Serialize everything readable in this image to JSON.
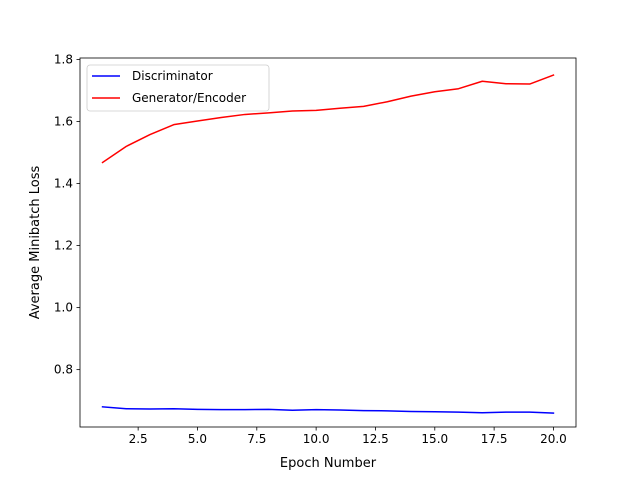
{
  "chart_data": {
    "type": "line",
    "title": "",
    "xlabel": "Epoch Number",
    "ylabel": "Average Minibatch Loss",
    "xlim": [
      0.05,
      20.95
    ],
    "ylim": [
      0.615,
      1.805
    ],
    "xticks": [
      2.5,
      5.0,
      7.5,
      10.0,
      12.5,
      15.0,
      17.5,
      20.0
    ],
    "xtick_labels": [
      "2.5",
      "5.0",
      "7.5",
      "10.0",
      "12.5",
      "15.0",
      "17.5",
      "20.0"
    ],
    "yticks": [
      0.8,
      1.0,
      1.2,
      1.4,
      1.6,
      1.8
    ],
    "ytick_labels": [
      "0.8",
      "1.0",
      "1.2",
      "1.4",
      "1.6",
      "1.8"
    ],
    "grid": false,
    "legend_position": "upper-left",
    "x": [
      1,
      2,
      3,
      4,
      5,
      6,
      7,
      8,
      9,
      10,
      11,
      12,
      13,
      14,
      15,
      16,
      17,
      18,
      19,
      20
    ],
    "series": [
      {
        "name": "Discriminator",
        "color": "#0000ff",
        "values": [
          0.68,
          0.674,
          0.673,
          0.674,
          0.672,
          0.671,
          0.671,
          0.672,
          0.669,
          0.671,
          0.67,
          0.668,
          0.667,
          0.665,
          0.664,
          0.663,
          0.661,
          0.663,
          0.663,
          0.66
        ]
      },
      {
        "name": "Generator/Encoder",
        "color": "#ff0000",
        "values": [
          1.468,
          1.52,
          1.558,
          1.59,
          1.602,
          1.613,
          1.623,
          1.628,
          1.634,
          1.636,
          1.643,
          1.649,
          1.664,
          1.682,
          1.696,
          1.706,
          1.73,
          1.722,
          1.721,
          1.75
        ]
      }
    ]
  }
}
